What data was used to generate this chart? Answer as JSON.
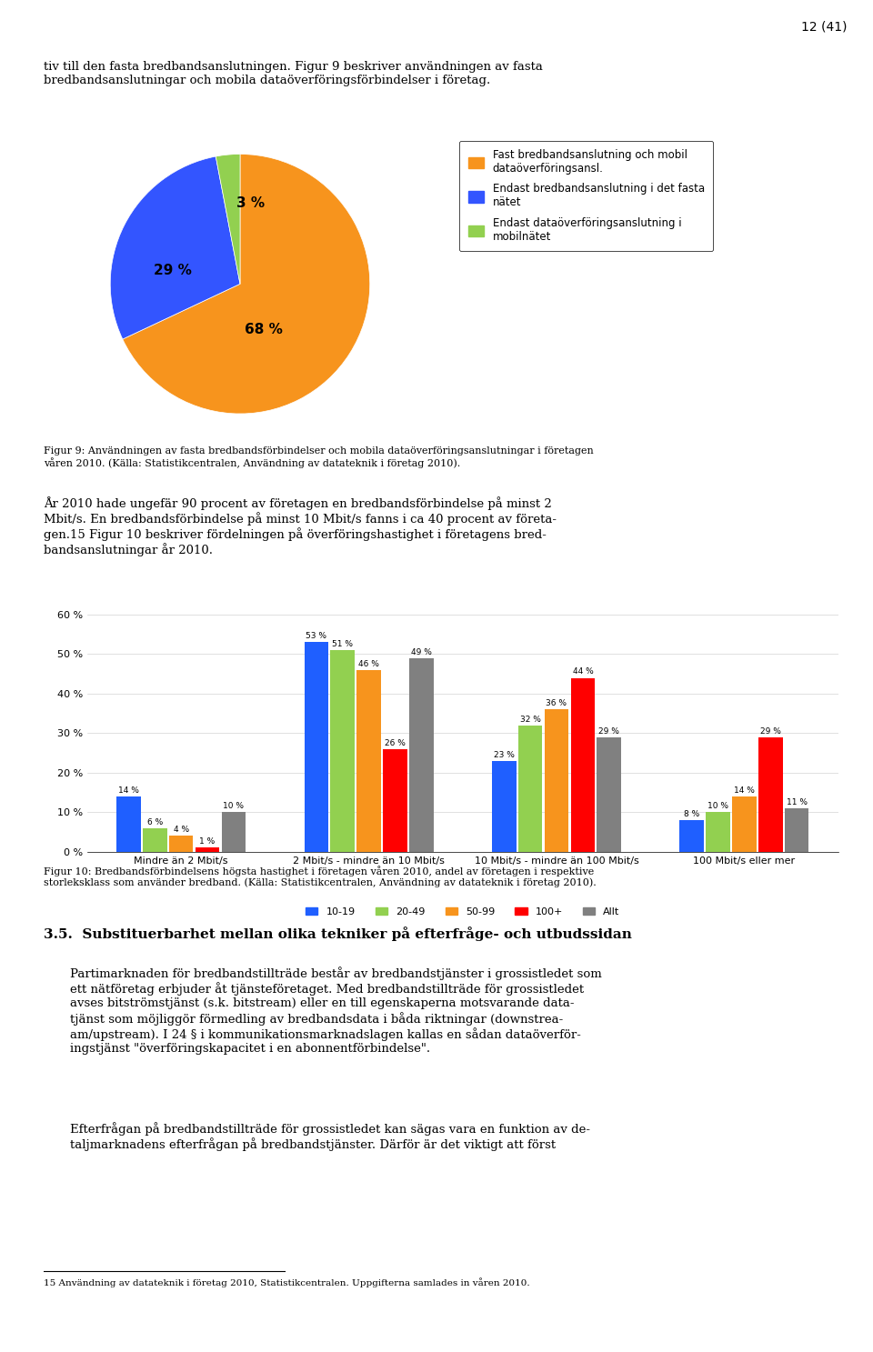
{
  "page_number": "12 (41)",
  "intro_text": "tiv till den fasta bredbandsanslutningen. Figur 9 beskriver användningen av fasta\nbredbandsanslutningar och mobila dataöverföringsförbindelser i företag.",
  "pie_slices": [
    68,
    29,
    3
  ],
  "pie_labels": [
    "68 %",
    "29 %",
    "3 %"
  ],
  "pie_colors": [
    "#F7941D",
    "#3355FF",
    "#92D050"
  ],
  "pie_legend": [
    "Fast bredbandsanslutning och mobil\ndataöverföringsansl.",
    "Endast bredbandsanslutning i det fasta\nnätet",
    "Endast dataöverföringsanslutning i\nmobilnätet"
  ],
  "fig9_caption": "Figur 9: Användningen av fasta bredbandsförbindelser och mobila dataöverföringsanslutningar i företagen\nvåren 2010. (Källa: Statistikcentralen, Användning av datateknik i företag 2010).",
  "para1": "År 2010 hade ungefär 90 procent av företagen en bredbandsförbindelse på minst 2\nMbit/s. En bredbandsförbindelse på minst 10 Mbit/s fanns i ca 40 procent av företa-\ngen.15 Figur 10 beskriver fördelningen på överföringshastighet i företagens bred-\nbandsanslutningar år 2010.",
  "bar_groups": [
    "Mindre än 2 Mbit/s",
    "2 Mbit/s - mindre än 10 Mbit/s",
    "10 Mbit/s - mindre än 100 Mbit/s",
    "100 Mbit/s eller mer"
  ],
  "bar_series": [
    "10-19",
    "20-49",
    "50-99",
    "100+",
    "Allt"
  ],
  "bar_colors": [
    "#1F5FFF",
    "#92D050",
    "#F7941D",
    "#FF0000",
    "#808080"
  ],
  "bar_data": [
    [
      14,
      6,
      4,
      1,
      10
    ],
    [
      53,
      51,
      46,
      26,
      49
    ],
    [
      23,
      32,
      36,
      44,
      29
    ],
    [
      8,
      10,
      14,
      29,
      11
    ]
  ],
  "bar_ylim": [
    0,
    60
  ],
  "bar_yticks": [
    0,
    10,
    20,
    30,
    40,
    50,
    60
  ],
  "fig10_caption": "Figur 10: Bredbandsförbindelsens högsta hastighet i företagen våren 2010, andel av företagen i respektive\nstorleksklass som använder bredband. (Källa: Statistikcentralen, Användning av datateknik i företag 2010).",
  "section_title": "3.5.  Substituerbarhet mellan olika tekniker på efterfråge- och utbudssidan",
  "para2": "Partimarknaden för bredbandstillträde består av bredbandstjänster i grossistledet som\nett nätföretag erbjuder åt tjänsteföretaget. Med bredbandstillträde för grossistledet\navses bitströmstjänst (s.k. bitstream) eller en till egenskaperna motsvarande data-\ntjänst som möjliggör förmedling av bredbandsdata i båda riktningar (downstrea-\nam/upstream). I 24 § i kommunikationsmarknadslagen kallas en sådan dataöverför-\ningstjänst \"överföringskapacitet i en abonnentförbindelse\".",
  "para3": "Efterfrågan på bredbandstillträde för grossistledet kan sägas vara en funktion av de-\ntaljmarknadens efterfrågan på bredbandstjänster. Därför är det viktigt att först",
  "footnote": "15 Användning av datateknik i företag 2010, Statistikcentralen. Uppgifterna samlades in våren 2010."
}
